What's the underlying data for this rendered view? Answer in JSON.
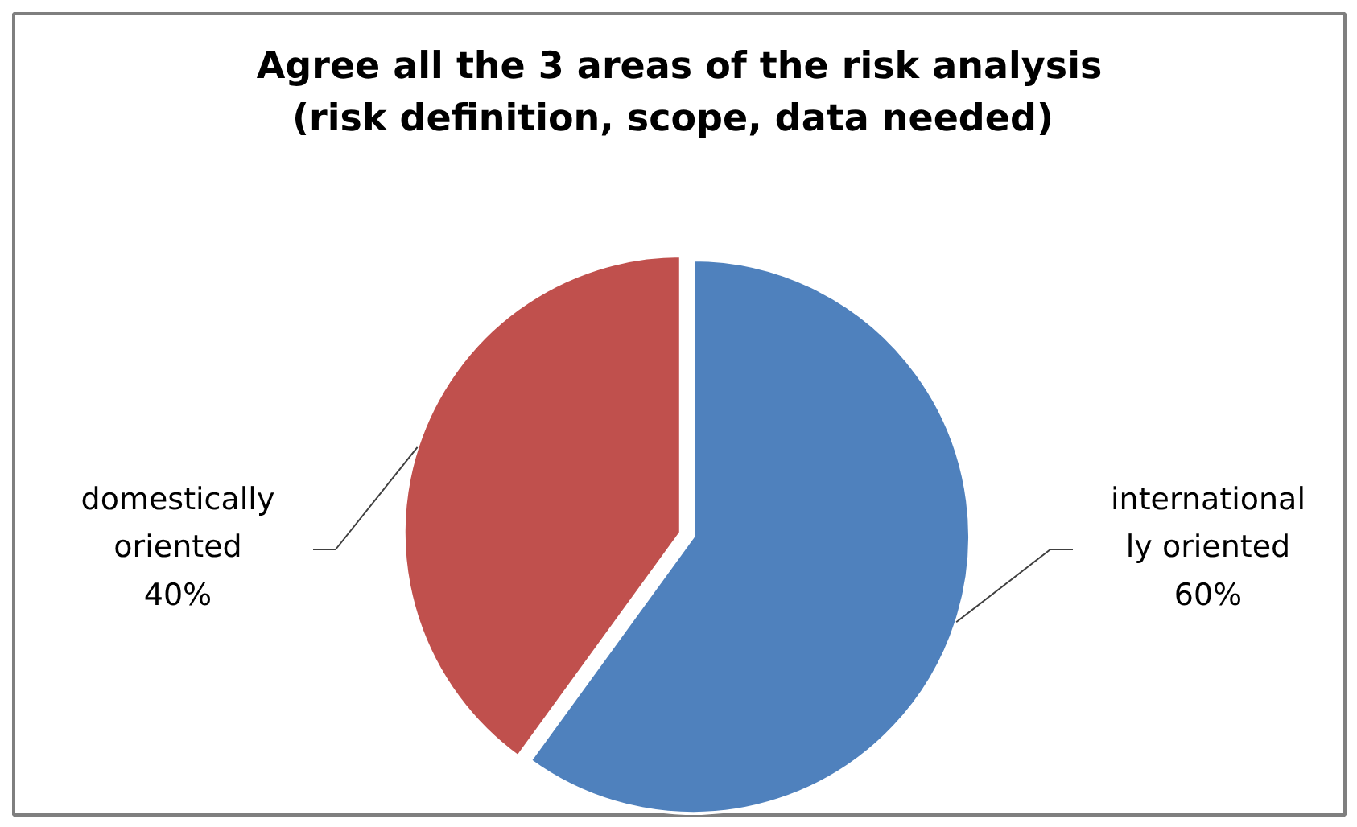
{
  "chart_data": {
    "type": "pie",
    "title": "Agree all the 3 areas of the risk analysis\n(risk definition,  scope, data needed)",
    "categories": [
      "international\nly oriented",
      "domestically\noriented"
    ],
    "values": [
      60,
      40
    ],
    "colors": [
      "#4f81bd",
      "#c0504d"
    ],
    "value_labels": [
      "60%",
      "40%"
    ]
  }
}
